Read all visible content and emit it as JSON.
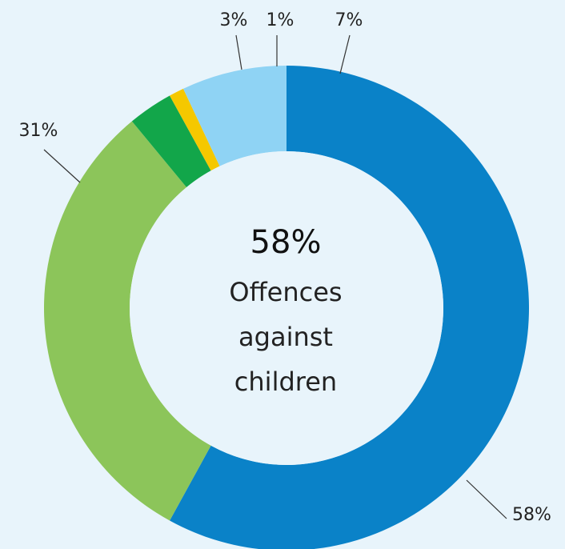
{
  "chart_data": {
    "type": "donut",
    "series": [
      {
        "value": 58,
        "label": "58%",
        "color": "#0a82c8"
      },
      {
        "value": 31,
        "label": "31%",
        "color": "#8cc55a"
      },
      {
        "value": 3,
        "label": "3%",
        "color": "#12a64a"
      },
      {
        "value": 1,
        "label": "1%",
        "color": "#f5c800"
      },
      {
        "value": 7,
        "label": "7%",
        "color": "#8fd3f4"
      }
    ],
    "center": {
      "value": "58%",
      "caption_lines": [
        "Offences",
        "against",
        "children"
      ]
    }
  },
  "colors": {
    "background": "#e8f4fb",
    "hole": "#e8f4fb"
  }
}
